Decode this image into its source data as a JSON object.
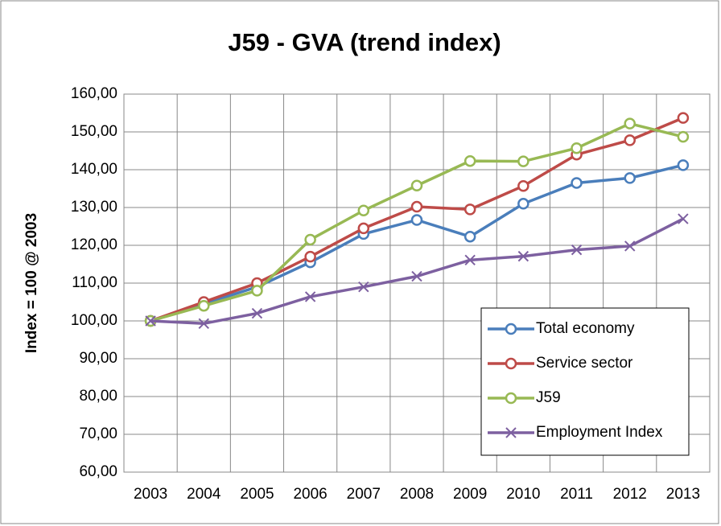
{
  "chart_data": {
    "type": "line",
    "title": "J59 - GVA (trend index)",
    "y_label": "Index = 100 @ 2003",
    "categories": [
      "2003",
      "2004",
      "2005",
      "2006",
      "2007",
      "2008",
      "2009",
      "2010",
      "2011",
      "2012",
      "2013"
    ],
    "series": [
      {
        "name": "Total economy",
        "color": "#4a7ebb",
        "marker": "circle",
        "values": [
          100,
          104.5,
          109,
          115.5,
          123,
          126.7,
          122.3,
          131,
          136.5,
          137.8,
          141.2
        ]
      },
      {
        "name": "Service sector",
        "color": "#be4b48",
        "marker": "circle",
        "values": [
          100,
          105,
          110,
          117,
          124.5,
          130.2,
          129.5,
          135.7,
          144,
          147.8,
          153.7
        ]
      },
      {
        "name": "J59",
        "color": "#98b954",
        "marker": "circle",
        "values": [
          100,
          104,
          108,
          121.5,
          129.2,
          135.8,
          142.3,
          142.2,
          145.7,
          152.2,
          148.7
        ]
      },
      {
        "name": "Employment Index",
        "color": "#7d60a0",
        "marker": "x",
        "values": [
          100,
          99.3,
          102,
          106.4,
          109,
          111.8,
          116.1,
          117.1,
          118.8,
          119.8,
          127
        ]
      }
    ],
    "ylim": [
      60,
      160
    ],
    "yticks": [
      {
        "value": 60,
        "label": "60,00"
      },
      {
        "value": 70,
        "label": "70,00"
      },
      {
        "value": 80,
        "label": "80,00"
      },
      {
        "value": 90,
        "label": "90,00"
      },
      {
        "value": 100,
        "label": "100,00"
      },
      {
        "value": 110,
        "label": "110,00"
      },
      {
        "value": 120,
        "label": "120,00"
      },
      {
        "value": 130,
        "label": "130,00"
      },
      {
        "value": 140,
        "label": "140,00"
      },
      {
        "value": 150,
        "label": "150,00"
      },
      {
        "value": 160,
        "label": "160,00"
      }
    ],
    "grid": true,
    "legend": "bottom-right"
  }
}
